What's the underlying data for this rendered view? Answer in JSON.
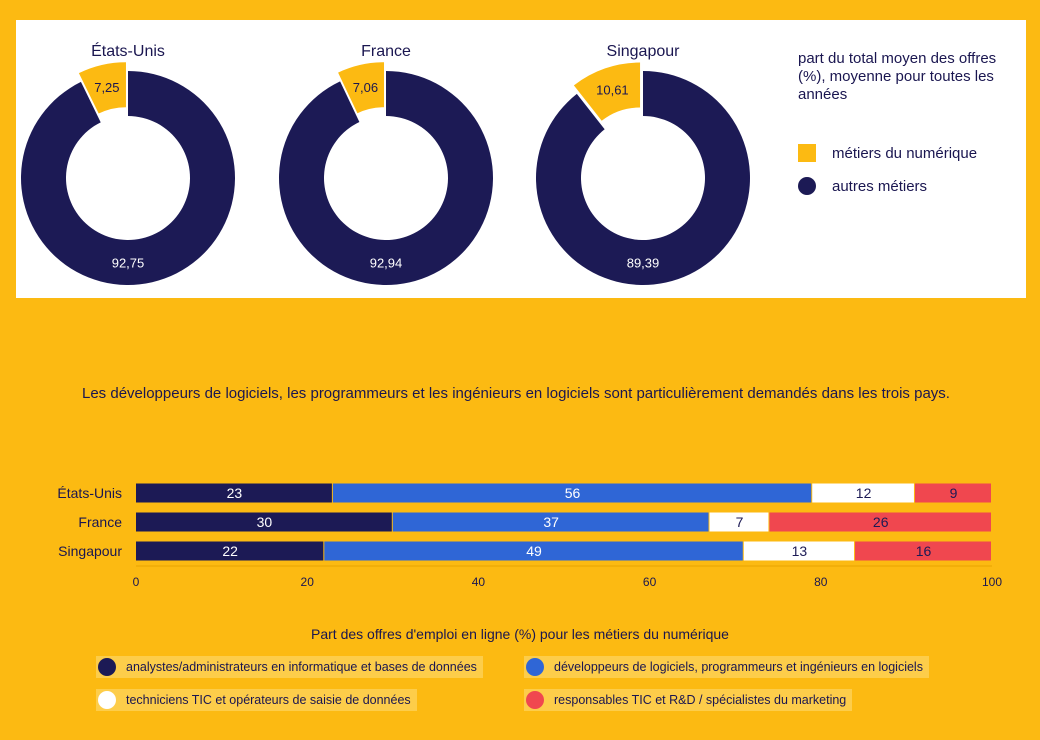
{
  "chart_data": [
    {
      "type": "pie",
      "donuts": [
        {
          "title": "États-Unis",
          "values": [
            7.25,
            92.75
          ],
          "labels": [
            "7,25",
            "92,75"
          ]
        },
        {
          "title": "France",
          "values": [
            7.06,
            92.94
          ],
          "labels": [
            "7,06",
            "92,94"
          ]
        },
        {
          "title": "Singapour",
          "values": [
            10.61,
            89.39
          ],
          "labels": [
            "10,61",
            "89,39"
          ]
        }
      ],
      "series": [
        {
          "name": "métiers du numérique",
          "color": "#FCBA12"
        },
        {
          "name": "autres métiers",
          "color": "#1c1a55"
        }
      ],
      "legend_title": "part du total moyen des offres (%), moyenne pour toutes les années",
      "legend_position": "right"
    },
    {
      "type": "bar",
      "orientation": "horizontal",
      "stacked": true,
      "headline": "Les développeurs de logiciels, les programmeurs et les ingénieurs en logiciels sont particulièrement demandés dans les trois pays.",
      "categories": [
        "États-Unis",
        "France",
        "Singapour"
      ],
      "series": [
        {
          "name": "analystes/administrateurs en informatique et bases de données",
          "values": [
            23,
            30,
            22
          ],
          "color": "#1c1a55",
          "text_color": "#ffffff"
        },
        {
          "name": "développeurs de logiciels, programmeurs et ingénieurs en logiciels",
          "values": [
            56,
            37,
            49
          ],
          "color": "#2f66d6",
          "text_color": "#ffffff"
        },
        {
          "name": "techniciens TIC et opérateurs de saisie de données",
          "values": [
            12,
            7,
            13
          ],
          "color": "#ffffff",
          "text_color": "#1c1a55"
        },
        {
          "name": "responsables TIC et R&D / spécialistes du marketing",
          "values": [
            9,
            26,
            16
          ],
          "color": "#f0474f",
          "text_color": "#1c1a55"
        }
      ],
      "segment_labels": [
        [
          "23",
          "56",
          "12",
          "9"
        ],
        [
          "30",
          "37",
          "7",
          "26"
        ],
        [
          "22",
          "49",
          "13",
          "16"
        ]
      ],
      "xlim": [
        0,
        100
      ],
      "xticks": [
        "0",
        "20",
        "40",
        "60",
        "80",
        "100"
      ],
      "caption": "Part des offres d'emploi en ligne (%) pour les métiers du numérique",
      "legend_position": "bottom"
    }
  ]
}
